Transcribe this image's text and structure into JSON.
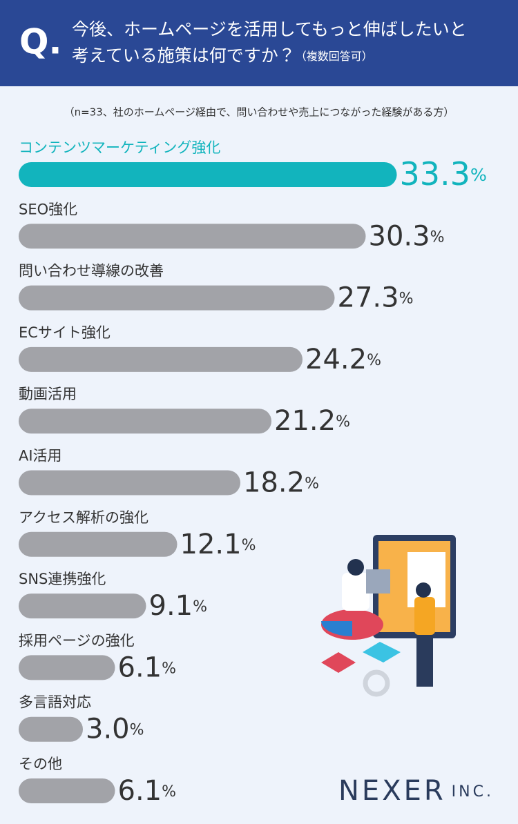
{
  "header": {
    "q_mark": "Q.",
    "title_lines": [
      "今後、ホームページを活用してもっと伸ばしたいと",
      "考えている施策は何ですか？"
    ],
    "title_note": "（複数回答可）"
  },
  "chart_data": {
    "type": "hbar",
    "subtitle": "（n=33、社のホームページ経由で、問い合わせや売上につながった経験がある方）",
    "categories": [
      "コンテンツマーケティング強化",
      "SEO強化",
      "問い合わせ導線の改善",
      "ECサイト強化",
      "動画活用",
      "AI活用",
      "アクセス解析の強化",
      "SNS連携強化",
      "採用ページの強化",
      "多言語対応",
      "その他"
    ],
    "values": [
      33.3,
      30.3,
      27.3,
      24.2,
      21.2,
      18.2,
      12.1,
      9.1,
      6.1,
      3.0,
      6.1
    ],
    "value_labels": [
      "33.3%",
      "30.3%",
      "27.3%",
      "24.2%",
      "21.2%",
      "18.2%",
      "12.1%",
      "9.1%",
      "6.1%",
      "3.0%",
      "6.1%"
    ],
    "colors": [
      "#12b4bd",
      "#a2a3a8",
      "#a2a3a8",
      "#a2a3a8",
      "#a2a3a8",
      "#a2a3a8",
      "#a2a3a8",
      "#a2a3a8",
      "#a2a3a8",
      "#a2a3a8",
      "#a2a3a8"
    ]
  },
  "footer": {
    "logo": "NEXER",
    "logo_suffix": "INC."
  }
}
